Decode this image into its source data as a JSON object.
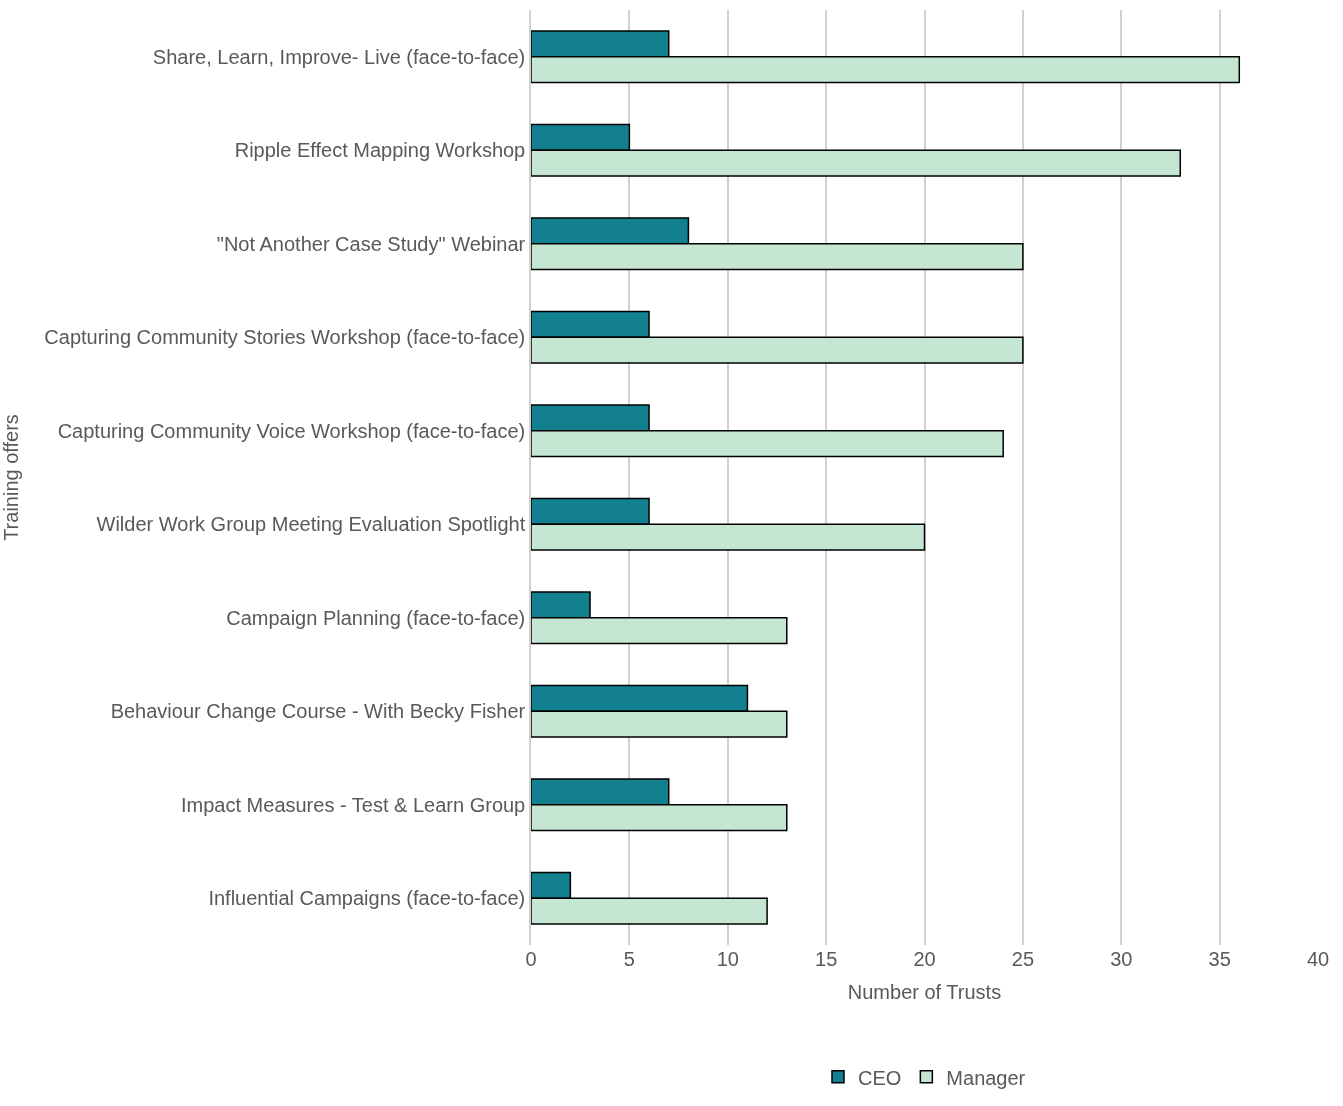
{
  "chart_data": {
    "type": "bar",
    "orientation": "horizontal",
    "xlabel": "Number of Trusts",
    "ylabel": "Training offers",
    "categories": [
      "Share, Learn, Improve- Live (face-to-face)",
      "Ripple Effect Mapping Workshop",
      "\"Not Another Case Study\" Webinar",
      "Capturing Community Stories Workshop (face-to-face)",
      "Capturing Community Voice Workshop (face-to-face)",
      "Wilder Work Group Meeting Evaluation Spotlight",
      "Campaign Planning (face-to-face)",
      "Behaviour Change Course - With Becky Fisher",
      "Impact Measures - Test & Learn Group",
      "Influential Campaigns (face-to-face)"
    ],
    "series": [
      {
        "name": "CEO",
        "color": "#13808f",
        "values": [
          7,
          5,
          8,
          6,
          6,
          6,
          3,
          11,
          7,
          2
        ]
      },
      {
        "name": "Manager",
        "color": "#c4e6d2",
        "values": [
          36,
          33,
          25,
          25,
          24,
          20,
          13,
          13,
          13,
          12
        ]
      }
    ],
    "xlim": [
      0,
      40
    ],
    "xticks": [
      0,
      5,
      10,
      15,
      20,
      25,
      30,
      35,
      40
    ],
    "grid": "x",
    "legend": "bottom"
  }
}
